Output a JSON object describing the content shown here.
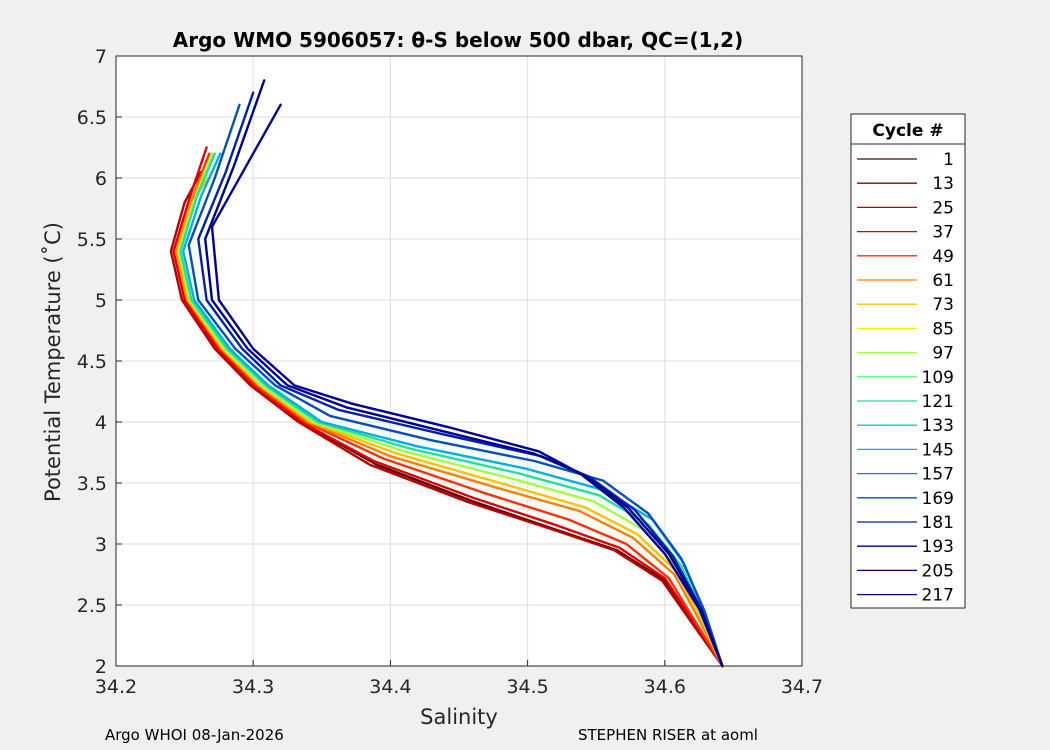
{
  "chart_data": {
    "type": "line",
    "title": "Argo WMO 5906057: θ-S below 500 dbar,  QC=(1,2)",
    "xlabel": "Salinity",
    "ylabel": "Potential Temperature (˚C)",
    "xlim": [
      34.2,
      34.7
    ],
    "ylim": [
      2,
      7
    ],
    "xticks": [
      34.2,
      34.3,
      34.4,
      34.5,
      34.6,
      34.7
    ],
    "yticks": [
      2,
      2.5,
      3,
      3.5,
      4,
      4.5,
      5,
      5.5,
      6,
      6.5,
      7
    ],
    "xtick_labels": [
      "34.2",
      "34.3",
      "34.4",
      "34.5",
      "34.6",
      "34.7"
    ],
    "ytick_labels": [
      "2",
      "2.5",
      "3",
      "3.5",
      "4",
      "4.5",
      "5",
      "5.5",
      "6",
      "6.5",
      "7"
    ],
    "grid": true,
    "legend_position": "right",
    "legend": {
      "title": "Cycle #",
      "entries": [
        {
          "label": "1",
          "color": "#5a0000"
        },
        {
          "label": "13",
          "color": "#8a0000"
        },
        {
          "label": "25",
          "color": "#b80000"
        },
        {
          "label": "37",
          "color": "#e00000"
        },
        {
          "label": "49",
          "color": "#ff3000"
        },
        {
          "label": "61",
          "color": "#ff8000"
        },
        {
          "label": "73",
          "color": "#ffc000"
        },
        {
          "label": "85",
          "color": "#f0f000"
        },
        {
          "label": "97",
          "color": "#a0ff40"
        },
        {
          "label": "109",
          "color": "#50ff80"
        },
        {
          "label": "121",
          "color": "#20e0a0"
        },
        {
          "label": "133",
          "color": "#00d0d0"
        },
        {
          "label": "145",
          "color": "#00b0e0"
        },
        {
          "label": "157",
          "color": "#0080d0"
        },
        {
          "label": "169",
          "color": "#0050c0"
        },
        {
          "label": "181",
          "color": "#0020b0"
        },
        {
          "label": "193",
          "color": "#000090"
        },
        {
          "label": "205",
          "color": "#000070"
        },
        {
          "label": "217",
          "color": "#00009a"
        }
      ]
    },
    "series": [
      {
        "color": "#5a0000",
        "x": [
          34.265,
          34.255,
          34.245,
          34.252,
          34.275,
          34.3,
          34.335,
          34.39,
          34.46,
          34.52,
          34.565,
          34.6,
          34.622,
          34.642
        ],
        "y": [
          6.1,
          5.8,
          5.4,
          5.0,
          4.6,
          4.3,
          4.0,
          3.65,
          3.35,
          3.12,
          2.95,
          2.7,
          2.35,
          2.0
        ]
      },
      {
        "color": "#b80000",
        "x": [
          34.262,
          34.25,
          34.24,
          34.248,
          34.272,
          34.298,
          34.333,
          34.385,
          34.455,
          34.518,
          34.563,
          34.598,
          34.62,
          34.642
        ],
        "y": [
          6.05,
          5.8,
          5.4,
          5.0,
          4.6,
          4.3,
          4.0,
          3.65,
          3.35,
          3.12,
          2.95,
          2.7,
          2.35,
          2.0
        ]
      },
      {
        "color": "#e00000",
        "x": [
          34.266,
          34.254,
          34.242,
          34.25,
          34.274,
          34.3,
          34.335,
          34.388,
          34.46,
          34.522,
          34.567,
          34.6,
          34.622,
          34.642
        ],
        "y": [
          6.25,
          5.85,
          5.4,
          5.0,
          4.6,
          4.3,
          4.0,
          3.68,
          3.38,
          3.15,
          2.97,
          2.72,
          2.35,
          2.0
        ]
      },
      {
        "color": "#ff3000",
        "x": [
          34.268,
          34.256,
          34.244,
          34.252,
          34.276,
          34.302,
          34.338,
          34.395,
          34.468,
          34.53,
          34.572,
          34.603,
          34.623,
          34.642
        ],
        "y": [
          6.2,
          5.85,
          5.4,
          5.0,
          4.6,
          4.3,
          4.0,
          3.7,
          3.42,
          3.2,
          3.0,
          2.72,
          2.35,
          2.0
        ]
      },
      {
        "color": "#ff8000",
        "x": [
          34.268,
          34.256,
          34.244,
          34.252,
          34.277,
          34.304,
          34.34,
          34.4,
          34.475,
          34.538,
          34.577,
          34.607,
          34.625,
          34.642
        ],
        "y": [
          6.15,
          5.85,
          5.4,
          5.0,
          4.6,
          4.3,
          4.0,
          3.72,
          3.47,
          3.27,
          3.05,
          2.75,
          2.38,
          2.0
        ]
      },
      {
        "color": "#ffc000",
        "x": [
          34.267,
          34.256,
          34.245,
          34.253,
          34.278,
          34.305,
          34.342,
          34.405,
          34.48,
          34.542,
          34.58,
          34.608,
          34.626,
          34.642
        ],
        "y": [
          6.0,
          5.8,
          5.4,
          5.0,
          4.6,
          4.3,
          4.0,
          3.74,
          3.5,
          3.3,
          3.08,
          2.78,
          2.4,
          2.0
        ]
      },
      {
        "color": "#a0ff40",
        "x": [
          34.27,
          34.258,
          34.246,
          34.254,
          34.279,
          34.306,
          34.344,
          34.41,
          34.487,
          34.548,
          34.584,
          34.61,
          34.627,
          34.642
        ],
        "y": [
          6.2,
          5.85,
          5.4,
          5.0,
          4.6,
          4.3,
          4.0,
          3.76,
          3.54,
          3.35,
          3.12,
          2.8,
          2.4,
          2.0
        ]
      },
      {
        "color": "#20e0a0",
        "x": [
          34.272,
          34.259,
          34.247,
          34.255,
          34.281,
          34.309,
          34.347,
          34.415,
          34.493,
          34.552,
          34.588,
          34.612,
          34.628,
          34.642
        ],
        "y": [
          6.2,
          5.85,
          5.4,
          5.0,
          4.6,
          4.3,
          4.0,
          3.78,
          3.58,
          3.4,
          3.16,
          2.82,
          2.42,
          2.0
        ]
      },
      {
        "color": "#00b0e0",
        "x": [
          34.276,
          34.262,
          34.249,
          34.257,
          34.283,
          34.311,
          34.35,
          34.42,
          34.498,
          34.556,
          34.591,
          34.614,
          34.629,
          34.642
        ],
        "y": [
          6.2,
          5.85,
          5.4,
          5.0,
          4.6,
          4.3,
          4.0,
          3.8,
          3.62,
          3.44,
          3.2,
          2.84,
          2.43,
          2.0
        ]
      },
      {
        "color": "#0050c0",
        "x": [
          34.29,
          34.272,
          34.253,
          34.26,
          34.287,
          34.316,
          34.356,
          34.43,
          34.505,
          34.555,
          34.588,
          34.612,
          34.629,
          34.642
        ],
        "y": [
          6.6,
          6.0,
          5.45,
          5.0,
          4.6,
          4.3,
          4.05,
          3.85,
          3.68,
          3.52,
          3.25,
          2.88,
          2.45,
          2.0
        ]
      },
      {
        "color": "#0020b0",
        "x": [
          34.3,
          34.28,
          34.26,
          34.266,
          34.292,
          34.32,
          34.362,
          34.438,
          34.51,
          34.545,
          34.578,
          34.606,
          34.627,
          34.642
        ],
        "y": [
          6.7,
          6.05,
          5.5,
          5.0,
          4.6,
          4.3,
          4.1,
          3.9,
          3.72,
          3.55,
          3.28,
          2.9,
          2.46,
          2.0
        ]
      },
      {
        "color": "#000090",
        "x": [
          34.308,
          34.286,
          34.265,
          34.27,
          34.296,
          34.325,
          34.368,
          34.44,
          34.505,
          34.54,
          34.573,
          34.603,
          34.626,
          34.642
        ],
        "y": [
          6.8,
          6.1,
          5.5,
          5.0,
          4.6,
          4.3,
          4.12,
          3.92,
          3.74,
          3.57,
          3.3,
          2.92,
          2.47,
          2.0
        ]
      },
      {
        "color": "#00009a",
        "x": [
          34.32,
          34.295,
          34.27,
          34.275,
          34.3,
          34.33,
          34.372,
          34.445,
          34.508,
          34.538,
          34.57,
          34.6,
          34.625,
          34.642
        ],
        "y": [
          6.6,
          6.1,
          5.6,
          5.0,
          4.6,
          4.3,
          4.15,
          3.95,
          3.76,
          3.58,
          3.3,
          2.92,
          2.47,
          2.0
        ]
      }
    ]
  },
  "footer": {
    "left": "Argo WHOI 08-Jan-2026",
    "right": "STEPHEN RISER at aoml"
  }
}
